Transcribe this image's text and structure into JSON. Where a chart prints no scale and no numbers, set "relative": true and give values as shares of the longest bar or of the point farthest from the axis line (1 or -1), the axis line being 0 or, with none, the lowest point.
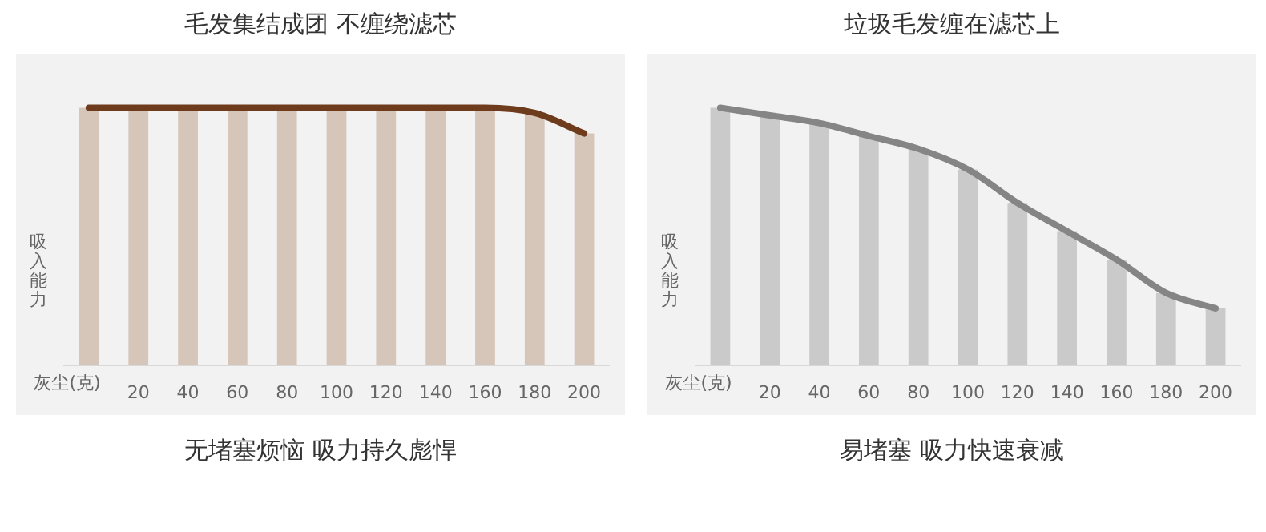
{
  "chart_data": [
    {
      "type": "bar",
      "title": "毛发集结成团 不缠绕滤芯",
      "xlabel": "灰尘(克)",
      "ylabel": "吸入能力",
      "relative": true,
      "legend": false,
      "grid": false,
      "annotations": [
        "无堵塞烦恼 吸力持久彪悍"
      ],
      "categories": [
        null,
        "20",
        "40",
        "60",
        "80",
        "100",
        "120",
        "140",
        "160",
        "180",
        "200"
      ],
      "series": [
        {
          "color": "#d6c5b9",
          "values": [
            1,
            1,
            1,
            1,
            1,
            1,
            1,
            1,
            1,
            0.98,
            0.9
          ]
        },
        {
          "type": "line",
          "color": "#6e3b1c",
          "values": [
            1,
            1,
            1,
            1,
            1,
            1,
            1,
            1,
            1,
            0.98,
            0.9
          ]
        }
      ]
    },
    {
      "type": "bar",
      "title": "垃圾毛发缠在滤芯上",
      "xlabel": "灰尘(克)",
      "ylabel": "吸入能力",
      "relative": true,
      "legend": false,
      "grid": false,
      "annotations": [
        "易堵塞 吸力快速衰减"
      ],
      "categories": [
        null,
        "20",
        "40",
        "60",
        "80",
        "100",
        "120",
        "140",
        "160",
        "180",
        "200"
      ],
      "series": [
        {
          "color": "#cacaca",
          "values": [
            1,
            0.97,
            0.94,
            0.89,
            0.84,
            0.76,
            0.63,
            0.52,
            0.41,
            0.28,
            0.22
          ]
        },
        {
          "type": "line",
          "color": "#858585",
          "values": [
            1,
            0.97,
            0.94,
            0.89,
            0.84,
            0.76,
            0.63,
            0.52,
            0.41,
            0.28,
            0.22
          ]
        }
      ]
    }
  ]
}
